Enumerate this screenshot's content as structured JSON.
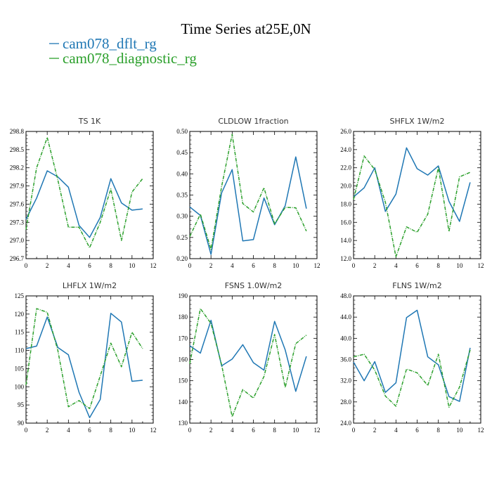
{
  "title": "Time Series at25E,0N",
  "legend": [
    {
      "name": "cam078_dflt_rg",
      "color": "#1f77b4"
    },
    {
      "name": "cam078_diagnostic_rg",
      "color": "#2ca02c"
    }
  ],
  "chart_data": [
    {
      "type": "line",
      "title": "TS   1K",
      "x": [
        0,
        1,
        2,
        3,
        4,
        5,
        6,
        7,
        8,
        9,
        10,
        11
      ],
      "xlim": [
        0,
        12
      ],
      "xticks": [
        "0",
        "2",
        "4",
        "6",
        "8",
        "10",
        "12"
      ],
      "ylim": [
        296.7,
        298.8
      ],
      "yticks": [
        "296.7",
        "297.0",
        "297.3",
        "297.6",
        "297.9",
        "298.2",
        "298.5",
        "298.8"
      ],
      "series": [
        {
          "name": "cam078_dflt_rg",
          "values": [
            297.35,
            297.7,
            298.15,
            298.05,
            297.88,
            297.25,
            297.05,
            297.38,
            298.02,
            297.62,
            297.5,
            297.52
          ]
        },
        {
          "name": "cam078_diagnostic_rg",
          "values": [
            297.18,
            298.2,
            298.7,
            298.0,
            297.22,
            297.22,
            296.88,
            297.3,
            297.85,
            297.0,
            297.8,
            298.02
          ]
        }
      ]
    },
    {
      "type": "line",
      "title": "CLDLOW   1fraction",
      "x": [
        0,
        1,
        2,
        3,
        4,
        5,
        6,
        7,
        8,
        9,
        10,
        11
      ],
      "xlim": [
        0,
        12
      ],
      "xticks": [
        "0",
        "2",
        "4",
        "6",
        "8",
        "10",
        "12"
      ],
      "ylim": [
        0.2,
        0.5
      ],
      "yticks": [
        "0.20",
        "0.25",
        "0.30",
        "0.35",
        "0.40",
        "0.45",
        "0.50"
      ],
      "series": [
        {
          "name": "cam078_dflt_rg",
          "values": [
            0.322,
            0.302,
            0.21,
            0.355,
            0.41,
            0.242,
            0.245,
            0.343,
            0.28,
            0.325,
            0.44,
            0.318
          ]
        },
        {
          "name": "cam078_diagnostic_rg",
          "values": [
            0.252,
            0.305,
            0.222,
            0.37,
            0.493,
            0.33,
            0.31,
            0.367,
            0.282,
            0.321,
            0.32,
            0.265
          ]
        }
      ]
    },
    {
      "type": "line",
      "title": "SHFLX   1W/m2",
      "x": [
        0,
        1,
        2,
        3,
        4,
        5,
        6,
        7,
        8,
        9,
        10,
        11
      ],
      "xlim": [
        0,
        12
      ],
      "xticks": [
        "0",
        "2",
        "4",
        "6",
        "8",
        "10",
        "12"
      ],
      "ylim": [
        12.0,
        26.0
      ],
      "yticks": [
        "12.0",
        "14.0",
        "16.0",
        "18.0",
        "20.0",
        "22.0",
        "24.0",
        "26.0"
      ],
      "series": [
        {
          "name": "cam078_dflt_rg",
          "values": [
            18.8,
            19.8,
            22.0,
            17.2,
            19.1,
            24.2,
            21.9,
            21.2,
            22.2,
            18.3,
            16.1,
            20.4
          ]
        },
        {
          "name": "cam078_diagnostic_rg",
          "values": [
            18.5,
            23.3,
            21.8,
            18.2,
            12.2,
            15.5,
            14.9,
            16.9,
            22.0,
            15.0,
            21.0,
            21.5
          ]
        }
      ]
    },
    {
      "type": "line",
      "title": "LHFLX   1W/m2",
      "x": [
        0,
        1,
        2,
        3,
        4,
        5,
        6,
        7,
        8,
        9,
        10,
        11
      ],
      "xlim": [
        0,
        12
      ],
      "xticks": [
        "0",
        "2",
        "4",
        "6",
        "8",
        "10",
        "12"
      ],
      "ylim": [
        90,
        125
      ],
      "yticks": [
        "90",
        "95",
        "100",
        "105",
        "110",
        "115",
        "120",
        "125"
      ],
      "series": [
        {
          "name": "cam078_dflt_rg",
          "values": [
            110.5,
            111.2,
            119.2,
            110.8,
            108.8,
            98.5,
            91.5,
            96.5,
            120.2,
            117.8,
            101.5,
            101.8
          ]
        },
        {
          "name": "cam078_diagnostic_rg",
          "values": [
            100.5,
            121.5,
            120.5,
            110.0,
            94.5,
            96.2,
            94.0,
            103.0,
            112.0,
            105.5,
            115.0,
            110.5
          ]
        }
      ]
    },
    {
      "type": "line",
      "title": "FSNS   1.0W/m2",
      "x": [
        0,
        1,
        2,
        3,
        4,
        5,
        6,
        7,
        8,
        9,
        10,
        11
      ],
      "xlim": [
        0,
        12
      ],
      "xticks": [
        "0",
        "2",
        "4",
        "6",
        "8",
        "10",
        "12"
      ],
      "ylim": [
        130,
        190
      ],
      "yticks": [
        "130",
        "140",
        "150",
        "160",
        "170",
        "180",
        "190"
      ],
      "series": [
        {
          "name": "cam078_dflt_rg",
          "values": [
            166.5,
            163.0,
            178.5,
            157.0,
            160.2,
            167.0,
            158.5,
            155.0,
            178.0,
            164.5,
            145.0,
            161.5
          ]
        },
        {
          "name": "cam078_diagnostic_rg",
          "values": [
            158.0,
            184.0,
            177.0,
            157.5,
            133.0,
            145.8,
            141.8,
            152.0,
            171.8,
            146.8,
            167.5,
            171.5
          ]
        }
      ]
    },
    {
      "type": "line",
      "title": "FLNS   1W/m2",
      "x": [
        0,
        1,
        2,
        3,
        4,
        5,
        6,
        7,
        8,
        9,
        10,
        11
      ],
      "xlim": [
        0,
        12
      ],
      "xticks": [
        "0",
        "2",
        "4",
        "6",
        "8",
        "10",
        "12"
      ],
      "ylim": [
        24.0,
        48.0
      ],
      "yticks": [
        "24.0",
        "28.0",
        "32.0",
        "36.0",
        "40.0",
        "44.0",
        "48.0"
      ],
      "series": [
        {
          "name": "cam078_dflt_rg",
          "values": [
            35.5,
            32.0,
            35.6,
            29.8,
            31.6,
            43.9,
            45.3,
            36.5,
            35.0,
            29.0,
            28.1,
            38.2
          ]
        },
        {
          "name": "cam078_diagnostic_rg",
          "values": [
            36.5,
            37.0,
            34.0,
            29.1,
            27.2,
            34.2,
            33.5,
            31.1,
            37.0,
            27.0,
            30.8,
            37.8
          ]
        }
      ]
    }
  ]
}
